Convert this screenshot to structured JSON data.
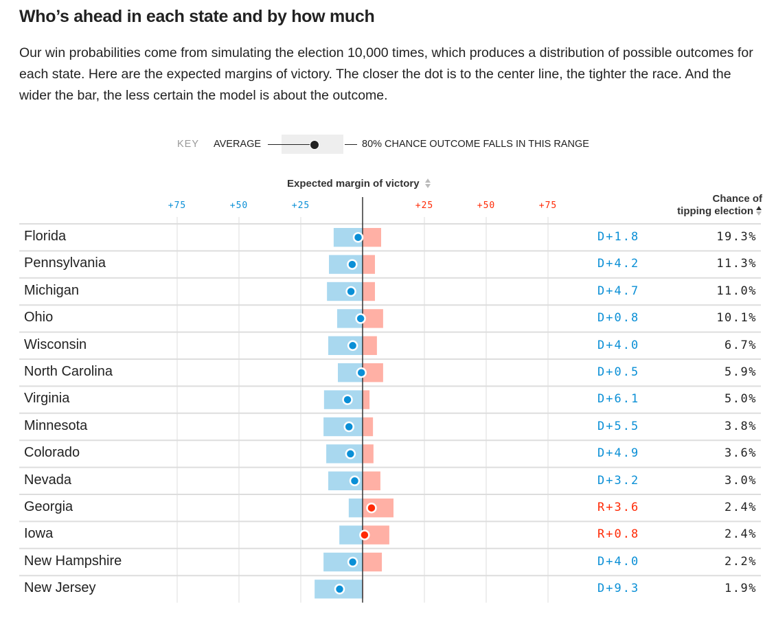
{
  "header": {
    "title": "Who’s ahead in each state and by how much",
    "intro": "Our win probabilities come from simulating the election 10,000 times, which produces a distribution of possible outcomes for each state. Here are the expected margins of victory. The closer the dot is to the center line, the tighter the race. And the wider the bar, the less certain the model is about the outcome."
  },
  "key": {
    "label": "KEY",
    "average": "AVERAGE",
    "range": "80% CHANCE OUTCOME FALLS IN THIS RANGE"
  },
  "colors": {
    "dem": "#0a8fd6",
    "rep": "#ff2a06",
    "dem_bar": "#a9d8ef",
    "rep_bar": "#ffb0a5"
  },
  "chart_data": {
    "type": "range-dot",
    "title": "Who’s ahead in each state and by how much",
    "xlabel": "Expected margin of victory",
    "right_column_header": "Chance of tipping election",
    "sort_column": "Chance of tipping election",
    "sort_direction": "descending",
    "x_axis": {
      "range": [
        -75,
        75
      ],
      "negative_side": "D",
      "positive_side": "R",
      "ticks": [
        {
          "value": -75,
          "label": "+75",
          "party": "dem"
        },
        {
          "value": -50,
          "label": "+50",
          "party": "dem"
        },
        {
          "value": -25,
          "label": "+25",
          "party": "dem"
        },
        {
          "value": 25,
          "label": "+25",
          "party": "rep"
        },
        {
          "value": 50,
          "label": "+50",
          "party": "rep"
        },
        {
          "value": 75,
          "label": "+75",
          "party": "rep"
        }
      ]
    },
    "rows": [
      {
        "state": "Florida",
        "margin": -1.8,
        "margin_label": "D+1.8",
        "low": -11.7,
        "high": 7.5,
        "tipping": "19.3%"
      },
      {
        "state": "Pennsylvania",
        "margin": -4.2,
        "margin_label": "D+4.2",
        "low": -13.6,
        "high": 5.0,
        "tipping": "11.3%"
      },
      {
        "state": "Michigan",
        "margin": -4.7,
        "margin_label": "D+4.7",
        "low": -14.4,
        "high": 5.0,
        "tipping": "11.0%"
      },
      {
        "state": "Ohio",
        "margin": -0.8,
        "margin_label": "D+0.8",
        "low": -10.3,
        "high": 8.3,
        "tipping": "10.1%"
      },
      {
        "state": "Wisconsin",
        "margin": -4.0,
        "margin_label": "D+4.0",
        "low": -13.9,
        "high": 5.8,
        "tipping": "6.7%"
      },
      {
        "state": "North Carolina",
        "margin": -0.5,
        "margin_label": "D+0.5",
        "low": -10.0,
        "high": 8.3,
        "tipping": "5.9%"
      },
      {
        "state": "Virginia",
        "margin": -6.1,
        "margin_label": "D+6.1",
        "low": -15.6,
        "high": 2.8,
        "tipping": "5.0%"
      },
      {
        "state": "Minnesota",
        "margin": -5.5,
        "margin_label": "D+5.5",
        "low": -15.8,
        "high": 4.2,
        "tipping": "3.8%"
      },
      {
        "state": "Colorado",
        "margin": -4.9,
        "margin_label": "D+4.9",
        "low": -14.7,
        "high": 4.4,
        "tipping": "3.6%"
      },
      {
        "state": "Nevada",
        "margin": -3.2,
        "margin_label": "D+3.2",
        "low": -13.9,
        "high": 7.2,
        "tipping": "3.0%"
      },
      {
        "state": "Georgia",
        "margin": 3.6,
        "margin_label": "R+3.6",
        "low": -5.6,
        "high": 12.5,
        "tipping": "2.4%"
      },
      {
        "state": "Iowa",
        "margin": 0.8,
        "margin_label": "R+0.8",
        "low": -9.4,
        "high": 10.8,
        "tipping": "2.4%"
      },
      {
        "state": "New Hampshire",
        "margin": -4.0,
        "margin_label": "D+4.0",
        "low": -15.8,
        "high": 7.8,
        "tipping": "2.2%"
      },
      {
        "state": "New Jersey",
        "margin": -9.3,
        "margin_label": "D+9.3",
        "low": -19.4,
        "high": 0.3,
        "tipping": "1.9%"
      }
    ]
  }
}
